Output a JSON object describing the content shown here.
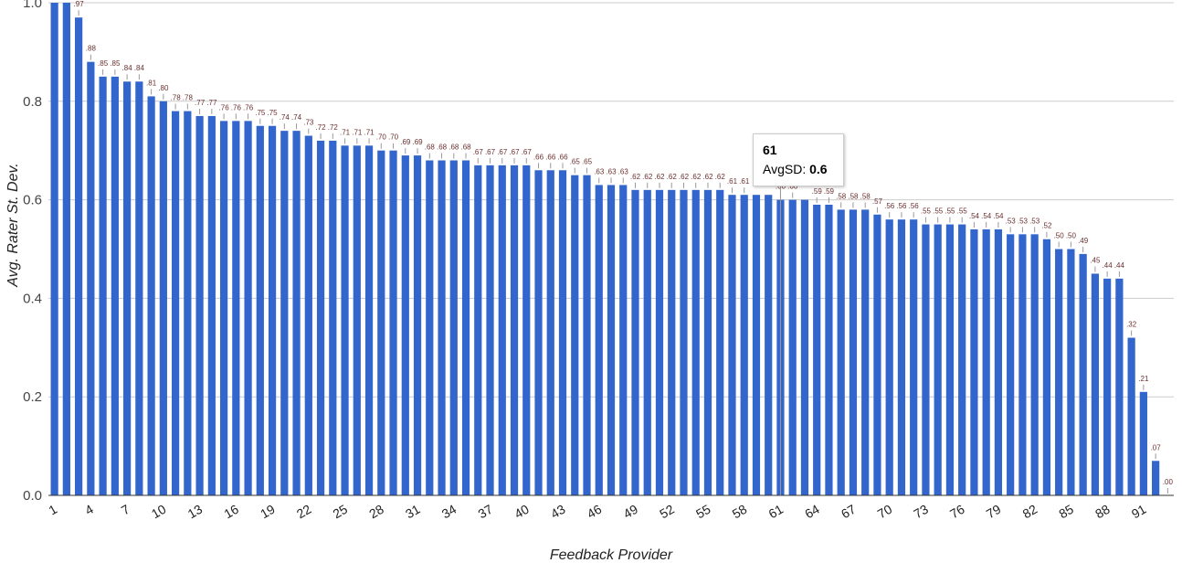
{
  "chart_data": {
    "type": "bar",
    "xlabel": "Feedback Provider",
    "ylabel": "Avg. Rater St. Dev.",
    "ylim": [
      0,
      1.0
    ],
    "yticks": [
      "0.0",
      "0.2",
      "0.4",
      "0.6",
      "0.8",
      "1.0"
    ],
    "xticks": [
      "1",
      "4",
      "7",
      "10",
      "13",
      "16",
      "19",
      "22",
      "25",
      "28",
      "31",
      "34",
      "37",
      "40",
      "43",
      "46",
      "49",
      "52",
      "55",
      "58",
      "61",
      "64",
      "67",
      "70",
      "73",
      "76",
      "79",
      "82",
      "85",
      "88",
      "91"
    ],
    "grid": true,
    "bar_color": "#3366cc",
    "series": [
      {
        "values": [
          1.0,
          1.0,
          0.97,
          0.88,
          0.85,
          0.85,
          0.84,
          0.84,
          0.81,
          0.8,
          0.78,
          0.78,
          0.77,
          0.77,
          0.76,
          0.76,
          0.76,
          0.75,
          0.75,
          0.74,
          0.74,
          0.73,
          0.72,
          0.72,
          0.71,
          0.71,
          0.71,
          0.7,
          0.7,
          0.69,
          0.69,
          0.68,
          0.68,
          0.68,
          0.68,
          0.67,
          0.67,
          0.67,
          0.67,
          0.67,
          0.66,
          0.66,
          0.66,
          0.65,
          0.65,
          0.63,
          0.63,
          0.63,
          0.62,
          0.62,
          0.62,
          0.62,
          0.62,
          0.62,
          0.62,
          0.62,
          0.61,
          0.61,
          0.61,
          0.61,
          0.6,
          0.6,
          0.6,
          0.59,
          0.59,
          0.58,
          0.58,
          0.58,
          0.57,
          0.56,
          0.56,
          0.56,
          0.55,
          0.55,
          0.55,
          0.55,
          0.54,
          0.54,
          0.54,
          0.53,
          0.53,
          0.53,
          0.52,
          0.5,
          0.5,
          0.49,
          0.45,
          0.44,
          0.44,
          0.32,
          0.21,
          0.07,
          0.0
        ],
        "labels": [
          "",
          "",
          ".97",
          ".88",
          ".85",
          ".85",
          ".84",
          ".84",
          ".81",
          ".80",
          ".78",
          ".78",
          ".77",
          ".77",
          ".76",
          ".76",
          ".76",
          ".75",
          ".75",
          ".74",
          ".74",
          ".73",
          ".72",
          ".72",
          ".71",
          ".71",
          ".71",
          ".70",
          ".70",
          ".69",
          ".69",
          ".68",
          ".68",
          ".68",
          ".68",
          ".67",
          ".67",
          ".67",
          ".67",
          ".67",
          ".66",
          ".66",
          ".66",
          ".65",
          ".65",
          ".63",
          ".63",
          ".63",
          ".62",
          ".62",
          ".62",
          ".62",
          ".62",
          ".62",
          ".62",
          ".62",
          ".61",
          ".61",
          "",
          "",
          ".60",
          ".60",
          "",
          ".59",
          ".59",
          ".58",
          ".58",
          ".58",
          ".57",
          ".56",
          ".56",
          ".56",
          ".55",
          ".55",
          ".55",
          ".55",
          ".54",
          ".54",
          ".54",
          ".53",
          ".53",
          ".53",
          ".52",
          ".50",
          ".50",
          ".49",
          ".45",
          ".44",
          ".44",
          ".32",
          ".21",
          ".07",
          ".00"
        ]
      }
    ],
    "tooltip": {
      "category": "61",
      "series_label": "AvgSD:",
      "value": "0.6"
    }
  }
}
